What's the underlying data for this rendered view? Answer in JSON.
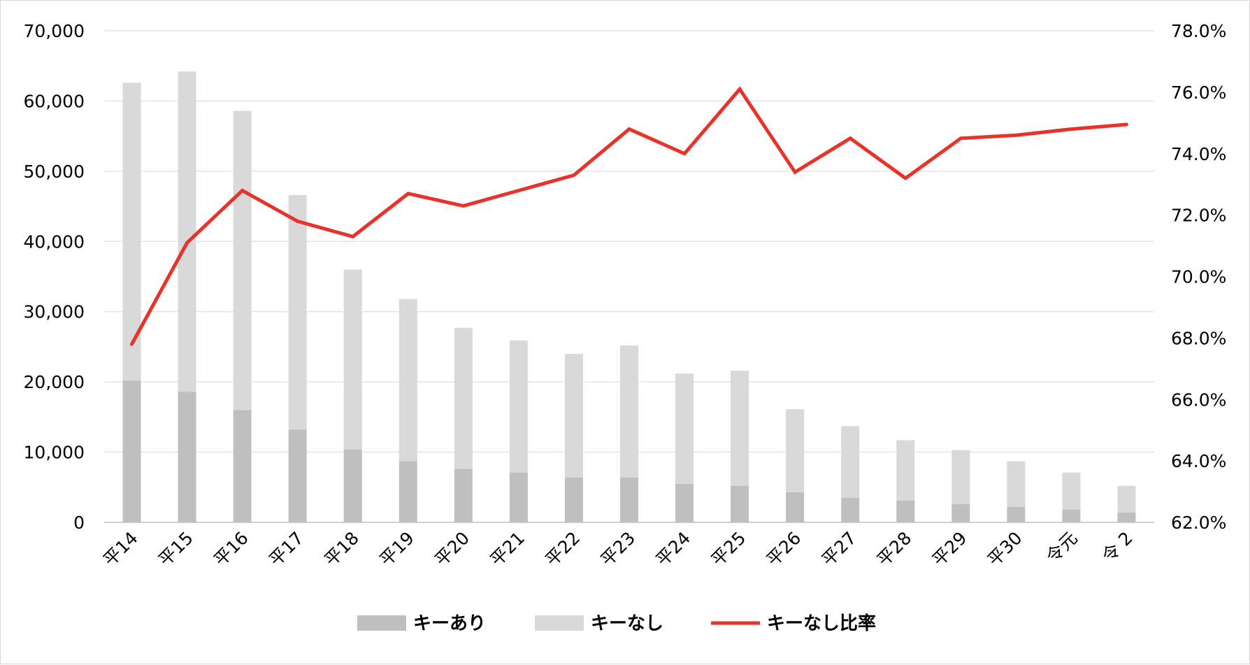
{
  "chart_data": {
    "type": "bar",
    "stacked": true,
    "categories": [
      "平14",
      "平15",
      "平16",
      "平17",
      "平18",
      "平19",
      "平20",
      "平21",
      "平22",
      "平23",
      "平24",
      "平25",
      "平26",
      "平27",
      "平28",
      "平29",
      "平30",
      "令元",
      "令 2"
    ],
    "series": [
      {
        "name": "キーあり",
        "type": "bar",
        "axis": "left",
        "color": "#bfbfbf",
        "values": [
          20200,
          18600,
          16000,
          13200,
          10400,
          8700,
          7600,
          7100,
          6400,
          6400,
          5500,
          5200,
          4300,
          3500,
          3100,
          2600,
          2200,
          1800,
          1400
        ]
      },
      {
        "name": "キーなし",
        "type": "bar",
        "axis": "left",
        "color": "#d9d9d9",
        "values": [
          42400,
          45600,
          42600,
          33400,
          25600,
          23100,
          20100,
          18800,
          17600,
          18800,
          15700,
          16400,
          11800,
          10200,
          8600,
          7700,
          6500,
          5300,
          3800
        ]
      },
      {
        "name": "キーなし比率",
        "type": "line",
        "axis": "right",
        "color": "#e8322a",
        "values": [
          67.8,
          71.1,
          72.8,
          71.8,
          71.3,
          72.7,
          72.3,
          72.8,
          73.3,
          74.8,
          74.0,
          76.1,
          73.4,
          74.5,
          73.2,
          74.5,
          74.6,
          74.8,
          74.95
        ]
      }
    ],
    "y_left": {
      "min": 0,
      "max": 70000,
      "step": 10000,
      "tick_labels": [
        "0",
        "10,000",
        "20,000",
        "30,000",
        "40,000",
        "50,000",
        "60,000",
        "70,000"
      ]
    },
    "y_right": {
      "min": 62.0,
      "max": 78.0,
      "step": 2.0,
      "tick_labels": [
        "62.0%",
        "64.0%",
        "66.0%",
        "68.0%",
        "70.0%",
        "72.0%",
        "74.0%",
        "76.0%",
        "78.0%"
      ]
    },
    "grid": true,
    "legend_position": "bottom",
    "title": "",
    "xlabel": "",
    "ylabel": ""
  }
}
